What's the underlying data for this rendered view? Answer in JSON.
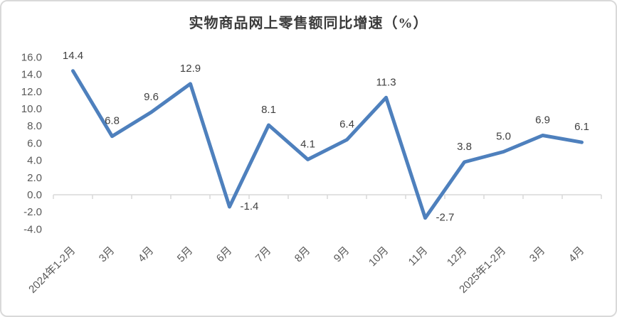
{
  "chart_data": {
    "type": "line",
    "title": "实物商品网上零售额同比增速（%）",
    "categories": [
      "2024年1-2月",
      "3月",
      "4月",
      "5月",
      "6月",
      "7月",
      "8月",
      "9月",
      "10月",
      "11月",
      "12月",
      "2025年1-2月",
      "3月",
      "4月"
    ],
    "series": [
      {
        "name": "实物商品网上零售额同比增速",
        "values": [
          14.4,
          6.8,
          9.6,
          12.9,
          -1.4,
          8.1,
          4.1,
          6.4,
          11.3,
          -2.7,
          3.8,
          5.0,
          6.9,
          6.1
        ],
        "data_labels": [
          "14.4",
          "6.8",
          "9.6",
          "12.9",
          "-1.4",
          "8.1",
          "4.1",
          "6.4",
          "11.3",
          "-2.7",
          "3.8",
          "5.0",
          "6.9",
          "6.1"
        ]
      }
    ],
    "xlabel": "",
    "ylabel": "",
    "ylim": [
      -4.0,
      16.0
    ],
    "ytick_step": 2.0,
    "ytick_labels": [
      "16.0",
      "14.0",
      "12.0",
      "10.0",
      "8.0",
      "6.0",
      "4.0",
      "2.0",
      "0.0",
      "-2.0",
      "-4.0"
    ],
    "grid": false,
    "legend_position": "none",
    "colors": {
      "line": "#4e80bd",
      "axis": "#d9d9d9",
      "tick_label": "#595959",
      "data_label": "#404040",
      "title": "#3b3b3b",
      "background": "#ffffff",
      "border": "#d9d9d9"
    }
  }
}
